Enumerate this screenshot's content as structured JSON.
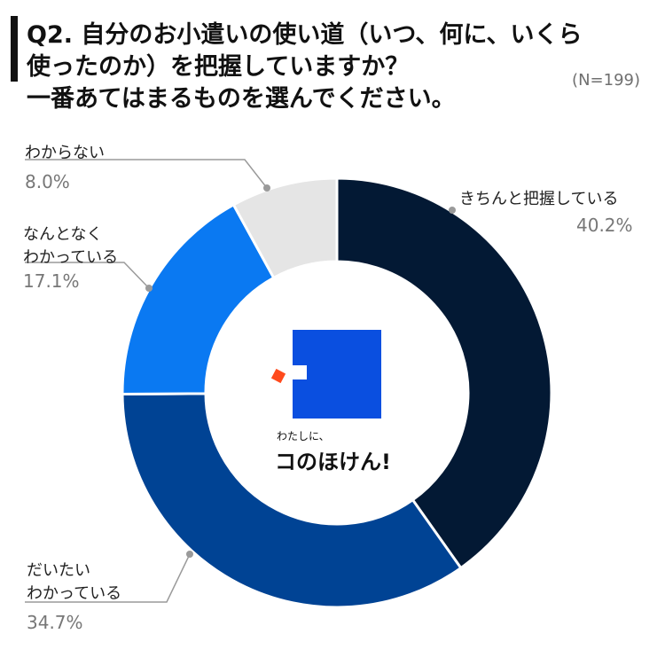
{
  "title": {
    "line1": "Q2. 自分のお小遣いの使い道（いつ、何に、いくら",
    "line2": "使ったのか）を把握していますか？",
    "line3": "一番あてはまるものを選んでください。"
  },
  "sample_size": "(N=199)",
  "logo": {
    "small_text": "わたしに、",
    "brand_text": "コのほけん!"
  },
  "colors": {
    "slice1": "#031934",
    "slice2": "#004394",
    "slice3": "#0a79f2",
    "slice4": "#e5e5e5",
    "leader": "#9a9a9a"
  },
  "chart_data": {
    "type": "pie",
    "donut": true,
    "categories": [
      "きちんと把握している",
      "だいたいわかっている",
      "なんとなくわかっている",
      "わからない"
    ],
    "values": [
      40.2,
      34.7,
      17.1,
      8.0
    ],
    "value_labels": [
      "40.2%",
      "34.7%",
      "17.1%",
      "8.0%"
    ],
    "label_lines": [
      [
        "きちんと把握している"
      ],
      [
        "だいたい",
        "わかっている"
      ],
      [
        "なんとなく",
        "わかっている"
      ],
      [
        "わからない"
      ]
    ],
    "start": "12 o'clock",
    "direction": "clockwise"
  }
}
